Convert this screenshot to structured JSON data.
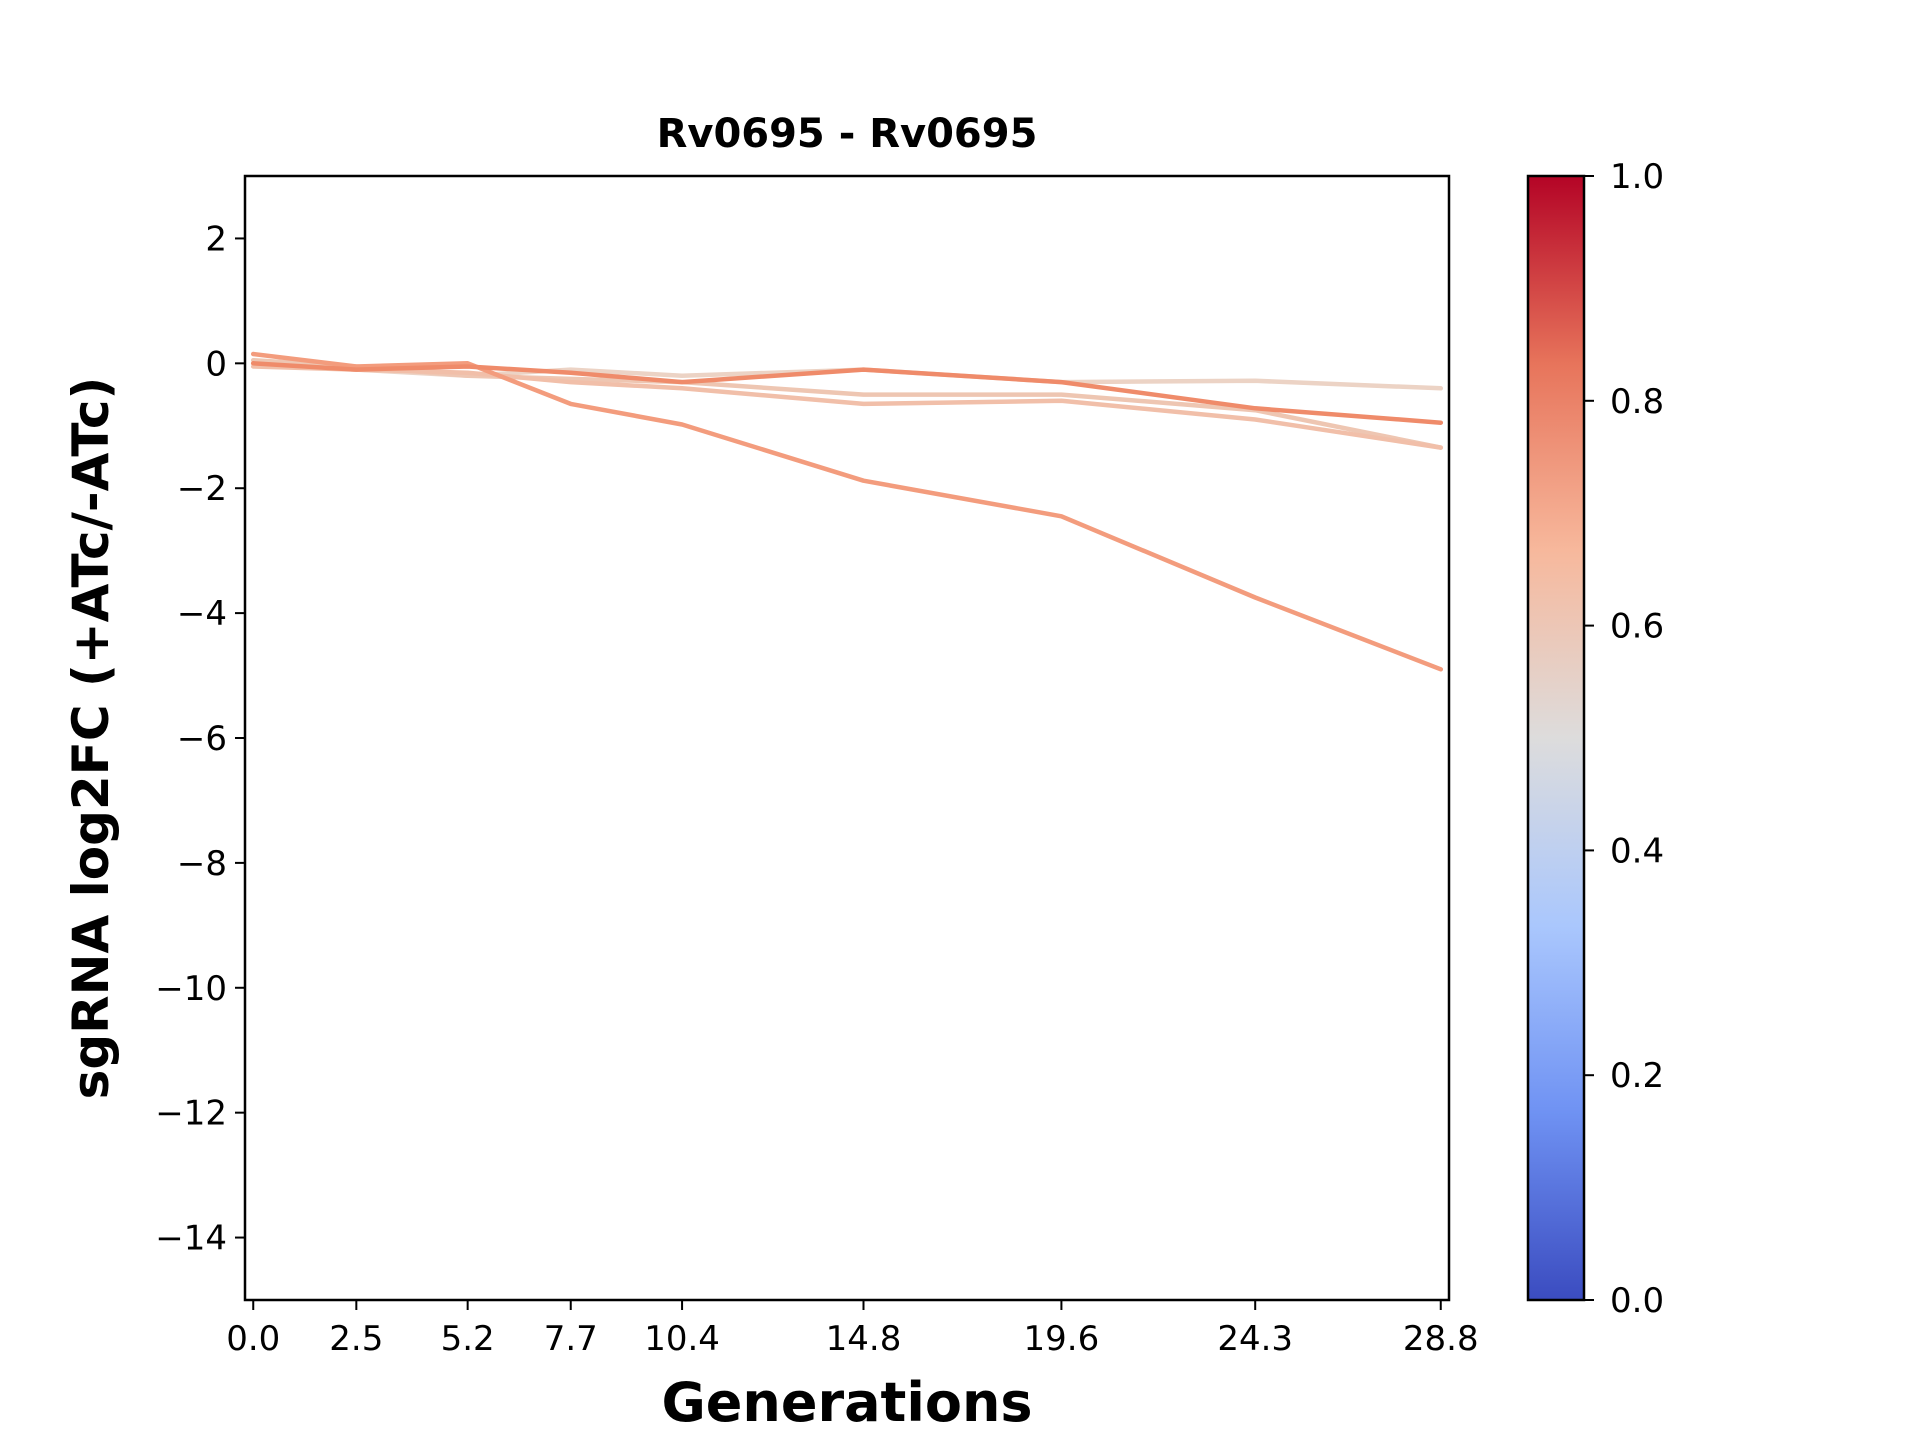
{
  "chart_data": {
    "type": "line",
    "title": "Rv0695 - Rv0695",
    "xlabel": "Generations",
    "ylabel": "sgRNA log2FC (+ATc/-ATc)",
    "x": [
      0.0,
      2.5,
      5.2,
      7.7,
      10.4,
      14.8,
      19.6,
      24.3,
      28.8
    ],
    "x_tick_labels": [
      "0.0",
      "2.5",
      "5.2",
      "7.7",
      "10.4",
      "14.8",
      "19.6",
      "24.3",
      "28.8"
    ],
    "xlim": [
      -0.2,
      29.0
    ],
    "ylim": [
      -15,
      3
    ],
    "y_ticks": [
      2,
      0,
      -2,
      -4,
      -6,
      -8,
      -10,
      -12,
      -14
    ],
    "y_tick_labels": [
      "2",
      "0",
      "−2",
      "−4",
      "−6",
      "−8",
      "−10",
      "−12",
      "−14"
    ],
    "grid": false,
    "series": [
      {
        "color_value": 0.63,
        "color": "#ecd3c5",
        "values": [
          0.0,
          -0.1,
          -0.2,
          -0.1,
          -0.2,
          -0.1,
          -0.3,
          -0.28,
          -0.4
        ]
      },
      {
        "color_value": 0.66,
        "color": "#eec6b2",
        "values": [
          0.05,
          -0.05,
          -0.2,
          -0.25,
          -0.3,
          -0.5,
          -0.5,
          -0.75,
          -1.35
        ]
      },
      {
        "color_value": 0.69,
        "color": "#f1bfa9",
        "values": [
          -0.05,
          -0.1,
          -0.15,
          -0.3,
          -0.4,
          -0.65,
          -0.6,
          -0.9,
          -1.35
        ]
      },
      {
        "color_value": 0.76,
        "color": "#f39c7d",
        "values": [
          0.15,
          -0.05,
          0.0,
          -0.65,
          -0.98,
          -1.88,
          -2.45,
          -3.75,
          -4.9
        ]
      },
      {
        "color_value": 0.79,
        "color": "#ef8b6a",
        "values": [
          0.0,
          -0.1,
          -0.05,
          -0.15,
          -0.3,
          -0.1,
          -0.3,
          -0.72,
          -0.95
        ]
      }
    ],
    "colorbar": {
      "min": 0.0,
      "max": 1.0,
      "colormap": "coolwarm",
      "ticks": [
        1.0,
        0.8,
        0.6,
        0.4,
        0.2,
        0.0
      ],
      "tick_labels": [
        "1.0",
        "0.8",
        "0.6",
        "0.4",
        "0.2",
        "0.0"
      ],
      "stops": [
        "#3b4cc0",
        "#6f92f3",
        "#aac7fd",
        "#dddcdc",
        "#f7b89c",
        "#e7745b",
        "#b40426"
      ]
    }
  }
}
